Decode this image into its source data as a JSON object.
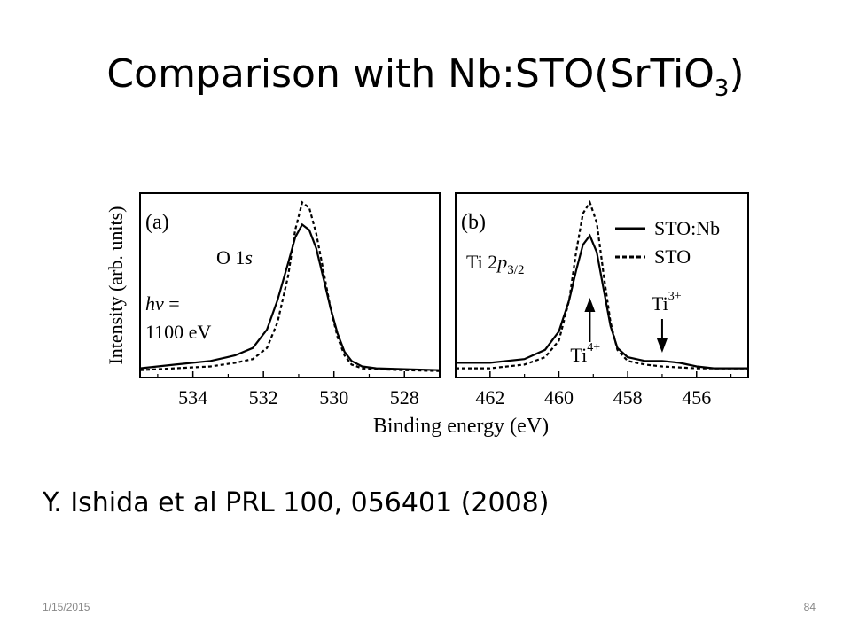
{
  "slide": {
    "title_main": "Comparison with Nb:STO(SrTiO",
    "title_subscript": "3",
    "title_end": ")",
    "citation": "Y. Ishida et al PRL 100, 056401 (2008)",
    "date": "1/15/2015",
    "page_number": "84"
  },
  "chart_data": {
    "type": "line",
    "ylabel": "Intensity (arb. units)",
    "xlabel": "Binding energy (eV)",
    "legend": {
      "placement": "top-right of panel (b)",
      "entries": [
        {
          "label": "STO:Nb",
          "style": "solid"
        },
        {
          "label": "STO",
          "style": "dashed"
        }
      ]
    },
    "y_ticks": "none",
    "panels": [
      {
        "id": "a",
        "panel_label": "(a)",
        "peak_label_base": "O 1",
        "peak_label_italic": "s",
        "annotation_italic": "h",
        "annotation_greek": "ν",
        "annotation_eq": " =",
        "annotation_line2": "1100 eV",
        "x_reversed": true,
        "xlim": [
          535.5,
          527.0
        ],
        "ylim": [
          0,
          1
        ],
        "x_ticks": [
          534,
          532,
          530,
          528
        ],
        "x_tick_labels": [
          "534",
          "532",
          "530",
          "528"
        ],
        "series": [
          {
            "name": "STO:Nb",
            "style": "solid",
            "x": [
              535.5,
              534.5,
              533.5,
              532.8,
              532.3,
              531.9,
              531.6,
              531.3,
              531.1,
              530.9,
              530.7,
              530.5,
              530.3,
              530.1,
              529.9,
              529.7,
              529.5,
              529.2,
              528.8,
              528.0,
              527.0
            ],
            "y": [
              0.05,
              0.07,
              0.09,
              0.12,
              0.16,
              0.26,
              0.42,
              0.62,
              0.76,
              0.83,
              0.8,
              0.7,
              0.54,
              0.38,
              0.24,
              0.14,
              0.09,
              0.06,
              0.05,
              0.045,
              0.04
            ]
          },
          {
            "name": "STO",
            "style": "dashed",
            "x": [
              535.5,
              534.5,
              533.5,
              532.8,
              532.3,
              531.9,
              531.6,
              531.3,
              531.1,
              530.9,
              530.7,
              530.5,
              530.3,
              530.1,
              529.9,
              529.7,
              529.5,
              529.2,
              528.8,
              528.0,
              527.0
            ],
            "y": [
              0.04,
              0.05,
              0.06,
              0.08,
              0.1,
              0.16,
              0.3,
              0.55,
              0.8,
              0.95,
              0.92,
              0.78,
              0.58,
              0.38,
              0.22,
              0.12,
              0.07,
              0.05,
              0.045,
              0.04,
              0.035
            ]
          }
        ]
      },
      {
        "id": "b",
        "panel_label": "(b)",
        "peak_label_base": "Ti 2",
        "peak_label_italic": "p",
        "peak_label_sub": "3/2",
        "ti4_label": "Ti",
        "ti4_sup": "4+",
        "ti3_label": "Ti",
        "ti3_sup": "3+",
        "ti4_marker_x": 459.1,
        "ti3_marker_x": 457.0,
        "x_reversed": true,
        "xlim": [
          463.0,
          454.5
        ],
        "ylim": [
          0,
          1
        ],
        "x_ticks": [
          462,
          460,
          458,
          456
        ],
        "x_tick_labels": [
          "462",
          "460",
          "458",
          "456"
        ],
        "series": [
          {
            "name": "STO:Nb",
            "style": "solid",
            "x": [
              463.0,
              462.0,
              461.0,
              460.4,
              460.0,
              459.7,
              459.5,
              459.3,
              459.1,
              458.9,
              458.7,
              458.5,
              458.3,
              458.0,
              457.5,
              457.0,
              456.5,
              456.0,
              455.5,
              455.0,
              454.5
            ],
            "y": [
              0.08,
              0.08,
              0.1,
              0.15,
              0.25,
              0.42,
              0.58,
              0.72,
              0.77,
              0.68,
              0.48,
              0.28,
              0.16,
              0.11,
              0.09,
              0.09,
              0.08,
              0.06,
              0.05,
              0.05,
              0.05
            ]
          },
          {
            "name": "STO",
            "style": "dashed",
            "x": [
              463.0,
              462.0,
              461.0,
              460.4,
              460.0,
              459.7,
              459.5,
              459.3,
              459.1,
              458.9,
              458.7,
              458.5,
              458.3,
              458.0,
              457.5,
              457.0,
              456.5,
              456.0,
              455.5,
              455.0,
              454.5
            ],
            "y": [
              0.05,
              0.05,
              0.07,
              0.11,
              0.2,
              0.42,
              0.68,
              0.89,
              0.95,
              0.84,
              0.56,
              0.3,
              0.15,
              0.09,
              0.07,
              0.06,
              0.055,
              0.05,
              0.05,
              0.05,
              0.05
            ]
          }
        ]
      }
    ]
  }
}
